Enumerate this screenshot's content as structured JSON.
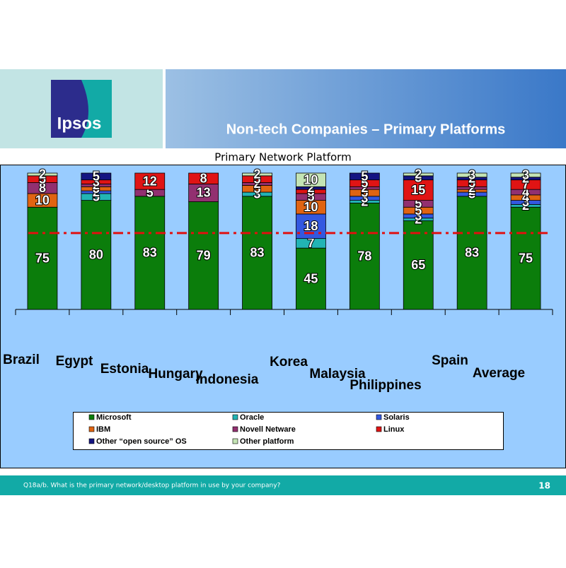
{
  "header": {
    "logo": "Ipsos",
    "title": "Non-tech Companies – Primary Platforms"
  },
  "chart_data": {
    "type": "stacked-bar",
    "title": "Primary Network Platform",
    "categories": [
      "Brazil",
      "Egypt",
      "Estonia",
      "Hungary",
      "Indonesia",
      "Korea",
      "Malaysia",
      "Philippines",
      "Spain",
      "Average"
    ],
    "series": [
      {
        "name": "Microsoft",
        "color": "#0b7d0b",
        "values": [
          75,
          80,
          83,
          79,
          83,
          45,
          78,
          65,
          83,
          75
        ]
      },
      {
        "name": "Oracle",
        "color": "#22b4b4",
        "values": [
          null,
          5,
          null,
          null,
          3,
          7,
          2,
          2,
          null,
          2
        ]
      },
      {
        "name": "Solaris",
        "color": "#3358e0",
        "values": [
          null,
          2,
          null,
          null,
          null,
          18,
          3,
          3,
          3,
          3
        ]
      },
      {
        "name": "IBM",
        "color": "#e06412",
        "values": [
          10,
          3,
          null,
          null,
          5,
          10,
          5,
          5,
          2,
          4
        ]
      },
      {
        "name": "Novell Netware",
        "color": "#923070",
        "values": [
          8,
          2,
          5,
          13,
          2,
          5,
          2,
          5,
          2,
          4
        ]
      },
      {
        "name": "Linux",
        "color": "#e01414",
        "values": [
          5,
          3,
          12,
          8,
          5,
          3,
          5,
          15,
          5,
          7
        ]
      },
      {
        "name": "Other “open source” OS",
        "color": "#141482",
        "values": [
          null,
          5,
          null,
          null,
          null,
          2,
          5,
          3,
          2,
          2
        ]
      },
      {
        "name": "Other platform",
        "color": "#c4e4b4",
        "values": [
          2,
          null,
          null,
          null,
          2,
          10,
          null,
          2,
          3,
          3
        ]
      }
    ],
    "ylim": [
      0,
      100
    ],
    "reference_line": {
      "value": 56,
      "color": "#e01010"
    },
    "legend": "bottom"
  },
  "footer": {
    "note": "Q18a/b. What is the primary network/desktop platform in use by your company?",
    "page": "18"
  }
}
